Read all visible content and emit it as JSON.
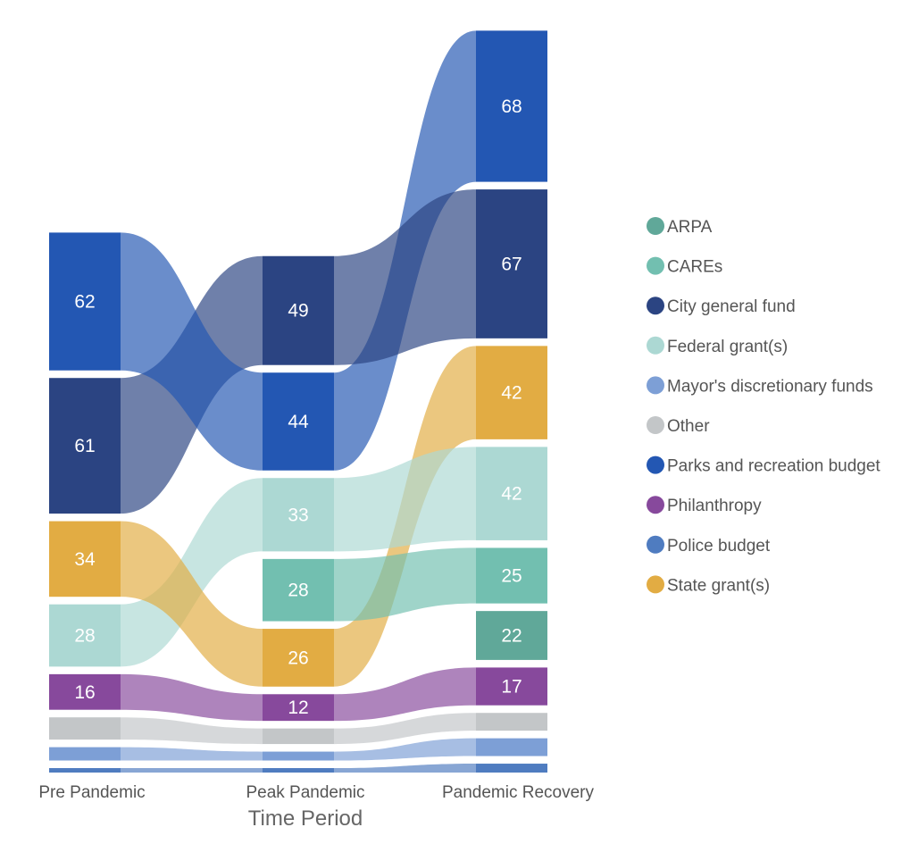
{
  "chart_data": {
    "type": "alluvial",
    "xlabel": "Time Period",
    "periods": [
      "Pre Pandemic",
      "Peak Pandemic",
      "Pandemic Recovery"
    ],
    "categories": [
      {
        "name": "ARPA",
        "color": "#60a899"
      },
      {
        "name": "CAREs",
        "color": "#72bfb0"
      },
      {
        "name": "City general fund",
        "color": "#2b4482"
      },
      {
        "name": "Federal grant(s)",
        "color": "#acd8d3"
      },
      {
        "name": "Mayor's discretionary funds",
        "color": "#7d9fd6"
      },
      {
        "name": "Other",
        "color": "#c3c6c8"
      },
      {
        "name": "Parks and recreation budget",
        "color": "#2357b3"
      },
      {
        "name": "Philanthropy",
        "color": "#87499c"
      },
      {
        "name": "Police budget",
        "color": "#4f7cc0"
      },
      {
        "name": "State grant(s)",
        "color": "#e2ac43"
      }
    ],
    "columns": [
      {
        "period": "Pre Pandemic",
        "nodes": [
          {
            "name": "Parks and recreation budget",
            "value": 62,
            "label": "62"
          },
          {
            "name": "City general fund",
            "value": 61,
            "label": "61"
          },
          {
            "name": "State grant(s)",
            "value": 34,
            "label": "34"
          },
          {
            "name": "Federal grant(s)",
            "value": 28,
            "label": "28"
          },
          {
            "name": "Philanthropy",
            "value": 16,
            "label": "16"
          },
          {
            "name": "Other",
            "value": 10,
            "label": ""
          },
          {
            "name": "Mayor's discretionary funds",
            "value": 6,
            "label": ""
          },
          {
            "name": "Police budget",
            "value": 2,
            "label": ""
          }
        ]
      },
      {
        "period": "Peak Pandemic",
        "nodes": [
          {
            "name": "City general fund",
            "value": 49,
            "label": "49"
          },
          {
            "name": "Parks and recreation budget",
            "value": 44,
            "label": "44"
          },
          {
            "name": "Federal grant(s)",
            "value": 33,
            "label": "33"
          },
          {
            "name": "CAREs",
            "value": 28,
            "label": "28"
          },
          {
            "name": "State grant(s)",
            "value": 26,
            "label": "26"
          },
          {
            "name": "Philanthropy",
            "value": 12,
            "label": "12"
          },
          {
            "name": "Other",
            "value": 7,
            "label": ""
          },
          {
            "name": "Mayor's discretionary funds",
            "value": 4,
            "label": ""
          },
          {
            "name": "Police budget",
            "value": 2,
            "label": ""
          }
        ]
      },
      {
        "period": "Pandemic Recovery",
        "nodes": [
          {
            "name": "Parks and recreation budget",
            "value": 68,
            "label": "68"
          },
          {
            "name": "City general fund",
            "value": 67,
            "label": "67"
          },
          {
            "name": "State grant(s)",
            "value": 42,
            "label": "42"
          },
          {
            "name": "Federal grant(s)",
            "value": 42,
            "label": "42"
          },
          {
            "name": "CAREs",
            "value": 25,
            "label": "25"
          },
          {
            "name": "ARPA",
            "value": 22,
            "label": "22"
          },
          {
            "name": "Philanthropy",
            "value": 17,
            "label": "17"
          },
          {
            "name": "Other",
            "value": 8,
            "label": ""
          },
          {
            "name": "Mayor's discretionary funds",
            "value": 8,
            "label": ""
          },
          {
            "name": "Police budget",
            "value": 4,
            "label": ""
          }
        ]
      }
    ],
    "legend": {
      "position": "right"
    }
  }
}
